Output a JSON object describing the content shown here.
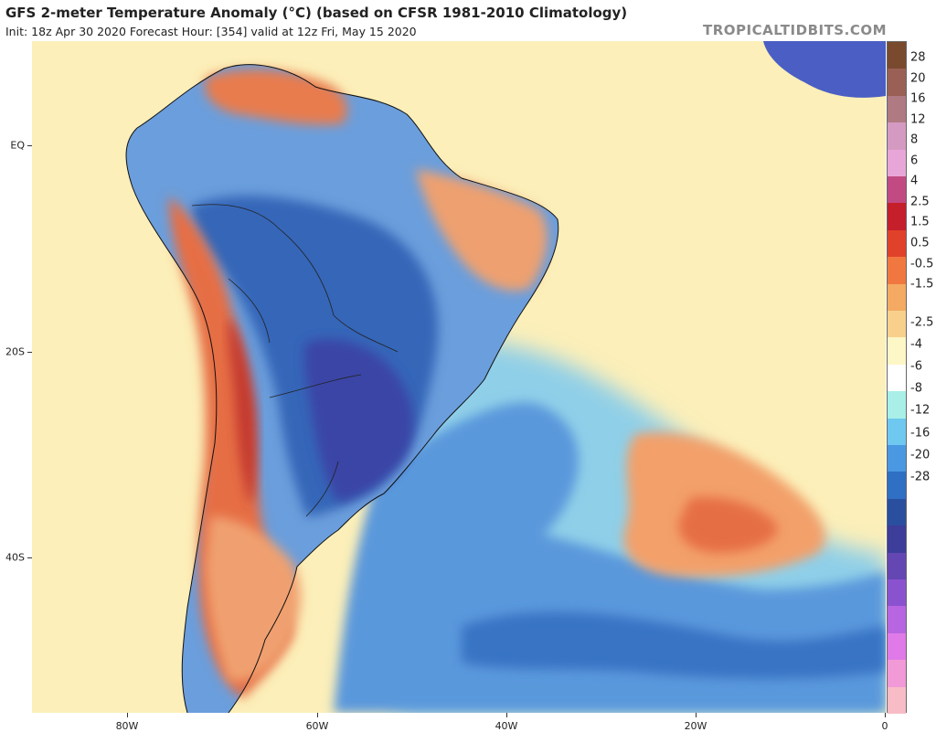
{
  "header": {
    "title": "GFS 2-meter Temperature Anomaly (°C) (based on CFSR 1981-2010 Climatology)",
    "subtitle": "Init: 18z Apr 30 2020   Forecast Hour: [354]   valid at 12z Fri, May 15 2020",
    "brand": "TROPICALTIDBITS.COM"
  },
  "axes": {
    "lat_labels": [
      "EQ",
      "20S",
      "40S"
    ],
    "lon_labels": [
      "80W",
      "60W",
      "40W",
      "20W",
      "0"
    ]
  },
  "colorbar": {
    "labels": [
      "28",
      "20",
      "16",
      "12",
      "8",
      "6",
      "4",
      "2.5",
      "1.5",
      "0.5",
      "-0.5",
      "-1.5",
      "-2.5",
      "-4",
      "-6",
      "-8",
      "-12",
      "-16",
      "-20",
      "-28"
    ],
    "colors": [
      "#7a4a2e",
      "#9a6055",
      "#b07a82",
      "#d59ac2",
      "#e8a6d8",
      "#c24a82",
      "#c41f2a",
      "#e0412a",
      "#f07840",
      "#f4aa62",
      "#f8d08c",
      "#fdf6c6",
      "#ffffff",
      "#a9efe8",
      "#6fc8ef",
      "#4a98e2",
      "#2f6fc4",
      "#2a4f9e",
      "#3d3d9a",
      "#6447b3",
      "#8a52cf",
      "#b765e0",
      "#e07ae8",
      "#f19ad7",
      "#f8bcc6"
    ]
  },
  "map": {
    "ocean_color": "#fcefb9",
    "land_color": "#6b9edc",
    "layers": {
      "atlantic_cool": "#8fcfe8",
      "south_ocean_cold": "#5a98dc",
      "south_ocean_colder": "#3873c4",
      "warm_patch": "#f3a06a",
      "warm_core": "#e66e45",
      "brazil_cold": "#3466b8",
      "brazil_colder": "#3a45a6",
      "andes_warm": "#e66e45",
      "andes_hot": "#c63a2e",
      "venezuela_warm": "#e87c4e",
      "ne_brazil_warm": "#eea070",
      "patagonia_warm": "#f0a070",
      "africa_cold": "#4a5ec4"
    }
  }
}
